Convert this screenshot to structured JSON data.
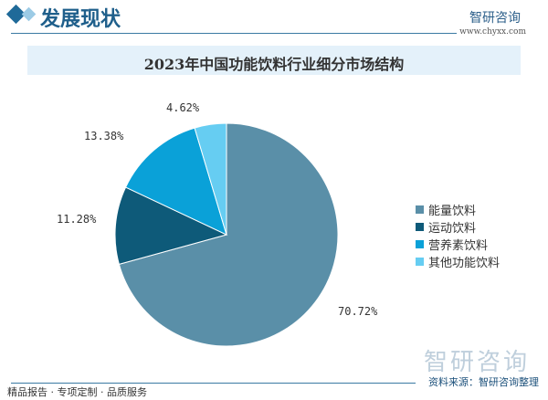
{
  "header": {
    "title": "发展现状",
    "brand": "智研咨询",
    "url": "www.chyxx.com"
  },
  "chart_data": {
    "type": "pie",
    "title": "2023年中国功能饮料行业细分市场结构",
    "categories": [
      "能量饮料",
      "运动饮料",
      "营养素饮料",
      "其他功能饮料"
    ],
    "values": [
      70.72,
      11.28,
      13.38,
      4.62
    ],
    "labels": [
      "70.72%",
      "11.28%",
      "13.38%",
      "4.62%"
    ],
    "colors": [
      "#5a8fa8",
      "#0e5a79",
      "#0aa1d8",
      "#66cdf2"
    ],
    "legend": "right"
  },
  "footer": {
    "left": "精品报告 · 专项定制 · 品质服务",
    "source": "资料来源：智研咨询整理",
    "watermark": "智研咨询"
  }
}
